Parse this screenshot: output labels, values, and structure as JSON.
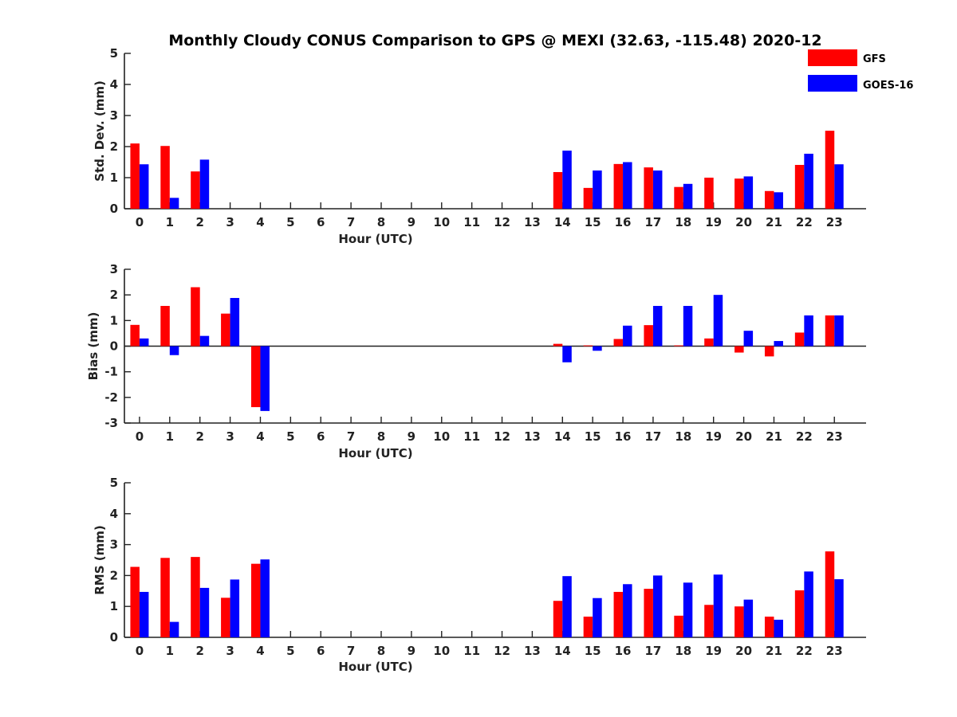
{
  "figure": {
    "title": "Monthly Cloudy CONUS Comparison to GPS @ MEXI (32.63, -115.48) 2020-12"
  },
  "legend": {
    "placement": "top-right",
    "items": [
      {
        "label": "GFS",
        "color": "#ff0000"
      },
      {
        "label": "GOES-16",
        "color": "#0000ff"
      }
    ]
  },
  "chart_data": [
    {
      "type": "bar",
      "xlabel": "Hour (UTC)",
      "ylabel": "Std. Dev. (mm)",
      "ylim": [
        0,
        5
      ],
      "yticks": [
        0,
        1,
        2,
        3,
        4,
        5
      ],
      "categories": [
        "0",
        "1",
        "2",
        "3",
        "4",
        "5",
        "6",
        "7",
        "8",
        "9",
        "10",
        "11",
        "12",
        "13",
        "14",
        "15",
        "16",
        "17",
        "18",
        "19",
        "20",
        "21",
        "22",
        "23"
      ],
      "series": [
        {
          "name": "GFS",
          "color": "#ff0000",
          "values": [
            2.1,
            2.02,
            1.2,
            null,
            null,
            null,
            null,
            null,
            null,
            null,
            null,
            null,
            null,
            null,
            1.18,
            0.67,
            1.44,
            1.33,
            0.7,
            1.0,
            0.97,
            0.57,
            1.41,
            2.51
          ]
        },
        {
          "name": "GOES-16",
          "color": "#0000ff",
          "values": [
            1.43,
            0.35,
            1.58,
            null,
            null,
            null,
            null,
            null,
            null,
            null,
            null,
            null,
            null,
            null,
            1.87,
            1.23,
            1.5,
            1.23,
            0.8,
            null,
            1.04,
            0.53,
            1.77,
            1.43
          ]
        }
      ]
    },
    {
      "type": "bar",
      "xlabel": "Hour (UTC)",
      "ylabel": "Bias (mm)",
      "ylim": [
        -3,
        3
      ],
      "yticks": [
        -3,
        -2,
        -1,
        0,
        1,
        2,
        3
      ],
      "categories": [
        "0",
        "1",
        "2",
        "3",
        "4",
        "5",
        "6",
        "7",
        "8",
        "9",
        "10",
        "11",
        "12",
        "13",
        "14",
        "15",
        "16",
        "17",
        "18",
        "19",
        "20",
        "21",
        "22",
        "23"
      ],
      "series": [
        {
          "name": "GFS",
          "color": "#ff0000",
          "values": [
            0.83,
            1.57,
            2.3,
            1.27,
            -2.38,
            null,
            null,
            null,
            null,
            null,
            null,
            null,
            null,
            null,
            0.09,
            0.03,
            0.28,
            0.82,
            0.03,
            0.3,
            -0.25,
            -0.4,
            0.53,
            1.2
          ]
        },
        {
          "name": "GOES-16",
          "color": "#0000ff",
          "values": [
            0.3,
            -0.35,
            0.4,
            1.88,
            -2.53,
            null,
            null,
            null,
            null,
            null,
            null,
            null,
            null,
            null,
            -0.63,
            -0.18,
            0.8,
            1.57,
            1.57,
            2.0,
            0.6,
            0.2,
            1.2,
            1.2
          ]
        }
      ]
    },
    {
      "type": "bar",
      "xlabel": "Hour (UTC)",
      "ylabel": "RMS (mm)",
      "ylim": [
        0,
        5
      ],
      "yticks": [
        0,
        1,
        2,
        3,
        4,
        5
      ],
      "categories": [
        "0",
        "1",
        "2",
        "3",
        "4",
        "5",
        "6",
        "7",
        "8",
        "9",
        "10",
        "11",
        "12",
        "13",
        "14",
        "15",
        "16",
        "17",
        "18",
        "19",
        "20",
        "21",
        "22",
        "23"
      ],
      "series": [
        {
          "name": "GFS",
          "color": "#ff0000",
          "values": [
            2.28,
            2.57,
            2.6,
            1.28,
            2.38,
            null,
            null,
            null,
            null,
            null,
            null,
            null,
            null,
            null,
            1.18,
            0.67,
            1.47,
            1.57,
            0.7,
            1.05,
            1.0,
            0.67,
            1.52,
            2.78
          ]
        },
        {
          "name": "GOES-16",
          "color": "#0000ff",
          "values": [
            1.47,
            0.5,
            1.6,
            1.87,
            2.52,
            null,
            null,
            null,
            null,
            null,
            null,
            null,
            null,
            null,
            1.98,
            1.27,
            1.72,
            2.0,
            1.77,
            2.03,
            1.22,
            0.57,
            2.13,
            1.88
          ]
        }
      ]
    }
  ]
}
